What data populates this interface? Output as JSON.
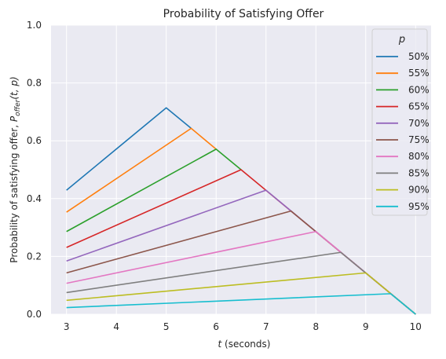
{
  "chart_data": {
    "type": "line",
    "title": "Probability of Satisfying Offer",
    "xlabel_var": "t",
    "xlabel_rest": " (seconds)",
    "ylabel_pre": "Probability of satisfying offer, ",
    "ylabel_var": "P",
    "ylabel_sub": "offer",
    "ylabel_args": "(t, p)",
    "xlim": [
      2.69,
      10.31
    ],
    "ylim": [
      0.0,
      1.0
    ],
    "xticks": [
      3,
      4,
      5,
      6,
      7,
      8,
      9,
      10
    ],
    "yticks": [
      0.0,
      0.2,
      0.4,
      0.6,
      0.8,
      1.0
    ],
    "xtick_labels": [
      "3",
      "4",
      "5",
      "6",
      "7",
      "8",
      "9",
      "10"
    ],
    "ytick_labels": [
      "0.0",
      "0.2",
      "0.4",
      "0.6",
      "0.8",
      "1.0"
    ],
    "grid": true,
    "legend_title": "p",
    "legend_position": "upper right",
    "series": [
      {
        "name": "50%",
        "color": "#1f77b4",
        "x": [
          3,
          5,
          5.5
        ],
        "y": [
          0.429,
          0.714,
          0.643
        ]
      },
      {
        "name": "55%",
        "color": "#ff7f0e",
        "x": [
          3,
          5.5,
          6
        ],
        "y": [
          0.353,
          0.643,
          0.571
        ]
      },
      {
        "name": "60%",
        "color": "#2ca02c",
        "x": [
          3,
          6,
          6.5
        ],
        "y": [
          0.286,
          0.571,
          0.5
        ]
      },
      {
        "name": "65%",
        "color": "#d62728",
        "x": [
          3,
          6.5,
          10
        ],
        "y": [
          0.231,
          0.5,
          0.0
        ]
      },
      {
        "name": "70%",
        "color": "#9467bd",
        "x": [
          3,
          7,
          10
        ],
        "y": [
          0.184,
          0.429,
          0.0
        ]
      },
      {
        "name": "75%",
        "color": "#8c564b",
        "x": [
          3,
          7.5,
          10
        ],
        "y": [
          0.143,
          0.357,
          0.0
        ]
      },
      {
        "name": "80%",
        "color": "#e377c2",
        "x": [
          3,
          8,
          10
        ],
        "y": [
          0.107,
          0.286,
          0.0
        ]
      },
      {
        "name": "85%",
        "color": "#7f7f7f",
        "x": [
          3,
          8.5,
          10
        ],
        "y": [
          0.075,
          0.214,
          0.0
        ]
      },
      {
        "name": "90%",
        "color": "#bcbd22",
        "x": [
          3,
          9,
          10
        ],
        "y": [
          0.048,
          0.143,
          0.0
        ]
      },
      {
        "name": "95%",
        "color": "#17becf",
        "x": [
          3,
          9.5,
          10
        ],
        "y": [
          0.023,
          0.071,
          0.0
        ]
      }
    ]
  }
}
